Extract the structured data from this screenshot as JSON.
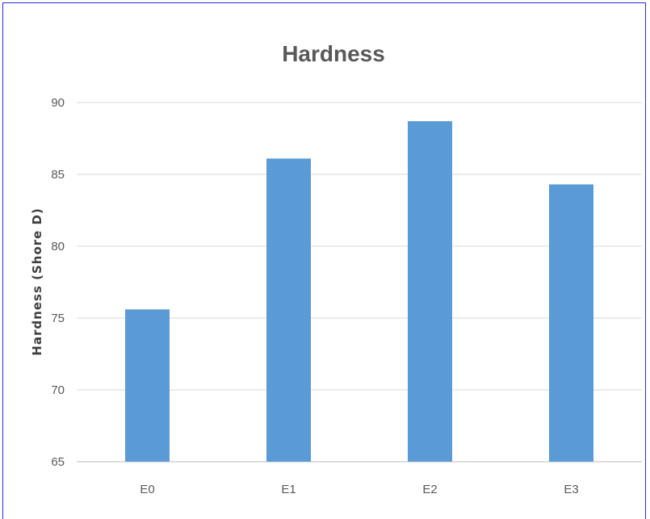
{
  "chart_data": {
    "type": "bar",
    "title": "Hardness",
    "xlabel": "",
    "ylabel": "Hardness (Shore D)",
    "categories": [
      "E0",
      "E1",
      "E2",
      "E3"
    ],
    "values": [
      75.6,
      86.1,
      88.7,
      84.3
    ],
    "ylim": [
      65,
      90
    ],
    "yticks": [
      65,
      70,
      75,
      80,
      85,
      90
    ],
    "grid": true,
    "bar_color": "#5b9bd5",
    "legend": "none"
  }
}
